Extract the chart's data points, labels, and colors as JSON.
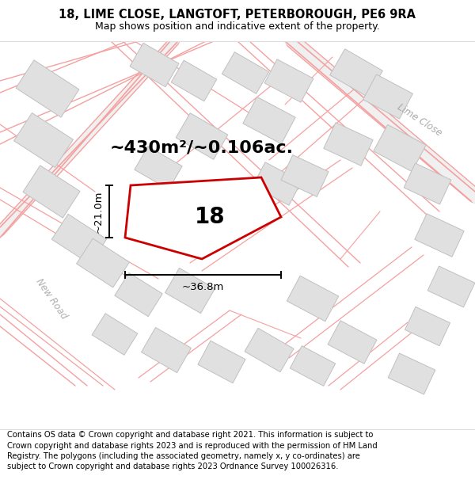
{
  "title_line1": "18, LIME CLOSE, LANGTOFT, PETERBOROUGH, PE6 9RA",
  "title_line2": "Map shows position and indicative extent of the property.",
  "footer_text": "Contains OS data © Crown copyright and database right 2021. This information is subject to Crown copyright and database rights 2023 and is reproduced with the permission of HM Land Registry. The polygons (including the associated geometry, namely x, y co-ordinates) are subject to Crown copyright and database rights 2023 Ordnance Survey 100026316.",
  "area_text": "~430m²/~0.106ac.",
  "plot_number": "18",
  "dim_width": "~36.8m",
  "dim_height": "~21.0m",
  "street_label_lime": "Lime Close",
  "street_label_new": "New Road",
  "map_bg": "#f7f7f7",
  "building_fill": "#e0e0e0",
  "building_stroke": "#c8c8c8",
  "road_line_color": "#f5a0a0",
  "road_fill_color": "#ffffff",
  "plot_stroke": "#cc0000",
  "title_fontsize": 10.5,
  "footer_fontsize": 7.2,
  "area_fontsize": 16,
  "plot_num_fontsize": 20,
  "street_fontsize": 8.5,
  "dim_fontsize": 9.5
}
